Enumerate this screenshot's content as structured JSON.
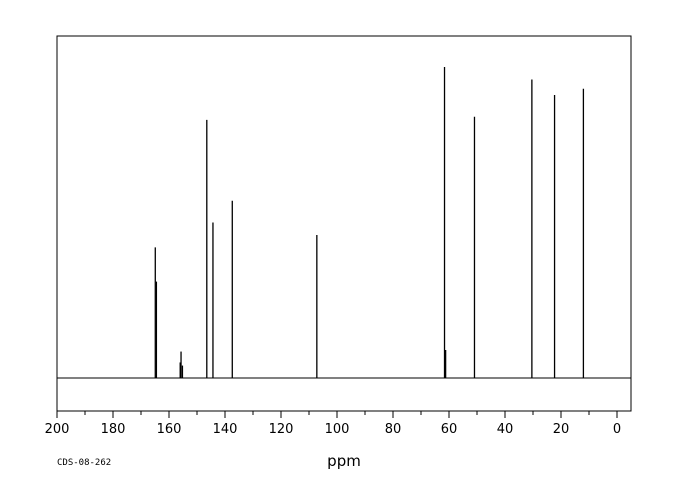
{
  "chart_data": {
    "type": "line",
    "title": "",
    "xlabel": "ppm",
    "ylabel": "",
    "xlim": [
      200,
      -5
    ],
    "x_reversed": true,
    "x_ticks": [
      200,
      180,
      160,
      140,
      120,
      100,
      80,
      60,
      40,
      20,
      0
    ],
    "x_tick_labels": [
      "200",
      "180",
      "160",
      "140",
      "120",
      "100",
      "80",
      "60",
      "40",
      "20",
      "0"
    ],
    "ylim": [
      -0.1,
      1.0
    ],
    "grid": false,
    "legend": "none",
    "spectrum_code": "CDS-08-262",
    "line_color": "#000000",
    "peaks": [
      {
        "ppm": 164.9,
        "intensity": 0.42
      },
      {
        "ppm": 164.5,
        "intensity": 0.31
      },
      {
        "ppm": 156.0,
        "intensity": 0.05
      },
      {
        "ppm": 155.7,
        "intensity": 0.085
      },
      {
        "ppm": 155.2,
        "intensity": 0.04
      },
      {
        "ppm": 146.5,
        "intensity": 0.83
      },
      {
        "ppm": 144.3,
        "intensity": 0.5
      },
      {
        "ppm": 137.4,
        "intensity": 0.57
      },
      {
        "ppm": 107.2,
        "intensity": 0.46
      },
      {
        "ppm": 61.6,
        "intensity": 1.0
      },
      {
        "ppm": 61.2,
        "intensity": 0.09
      },
      {
        "ppm": 50.9,
        "intensity": 0.84
      },
      {
        "ppm": 30.4,
        "intensity": 0.96
      },
      {
        "ppm": 22.3,
        "intensity": 0.91
      },
      {
        "ppm": 12.0,
        "intensity": 0.93
      }
    ]
  }
}
